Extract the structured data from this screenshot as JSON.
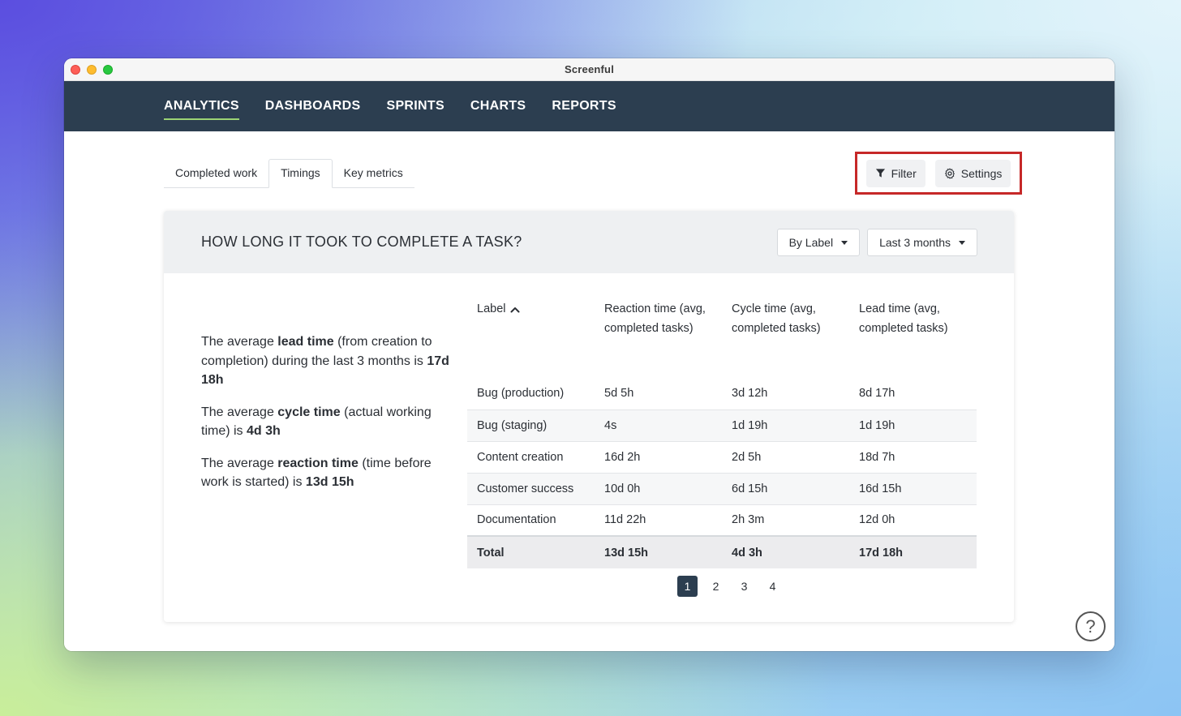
{
  "window": {
    "title": "Screenful"
  },
  "nav": {
    "items": [
      {
        "label": "ANALYTICS",
        "active": true
      },
      {
        "label": "DASHBOARDS"
      },
      {
        "label": "SPRINTS"
      },
      {
        "label": "CHARTS"
      },
      {
        "label": "REPORTS"
      }
    ]
  },
  "tabs": [
    {
      "label": "Completed work"
    },
    {
      "label": "Timings",
      "active": true
    },
    {
      "label": "Key metrics"
    }
  ],
  "toolbar": {
    "filter_label": "Filter",
    "settings_label": "Settings"
  },
  "card": {
    "title": "HOW LONG IT TOOK TO COMPLETE A TASK?",
    "group_by": "By Label",
    "period": "Last 3 months"
  },
  "summary": {
    "lead": {
      "pre": "The average ",
      "term": "lead time",
      "mid": " (from creation to completion) during the last 3 months is ",
      "value": "17d 18h"
    },
    "cycle": {
      "pre": "The average ",
      "term": "cycle time",
      "mid": " (actual working time) is ",
      "value": "4d 3h"
    },
    "reaction": {
      "pre": "The average ",
      "term": "reaction time",
      "mid": " (time before work is started) is ",
      "value": "13d 15h"
    }
  },
  "table": {
    "headers": [
      "Label",
      "Reaction time (avg, completed tasks)",
      "Cycle time (avg, completed tasks)",
      "Lead time (avg, completed tasks)"
    ],
    "rows": [
      [
        "Bug (production)",
        "5d 5h",
        "3d 12h",
        "8d 17h"
      ],
      [
        "Bug (staging)",
        "4s",
        "1d 19h",
        "1d 19h"
      ],
      [
        "Content creation",
        "16d 2h",
        "2d 5h",
        "18d 7h"
      ],
      [
        "Customer success",
        "10d 0h",
        "6d 15h",
        "16d 15h"
      ],
      [
        "Documentation",
        "11d 22h",
        "2h 3m",
        "12d 0h"
      ]
    ],
    "total": [
      "Total",
      "13d 15h",
      "4d 3h",
      "17d 18h"
    ]
  },
  "pagination": {
    "pages": [
      "1",
      "2",
      "3",
      "4"
    ],
    "current": "1"
  },
  "help": {
    "label": "?"
  },
  "colors": {
    "navbar": "#2c3e50",
    "active_underline": "#9bd374",
    "highlight_box": "#c62828"
  }
}
